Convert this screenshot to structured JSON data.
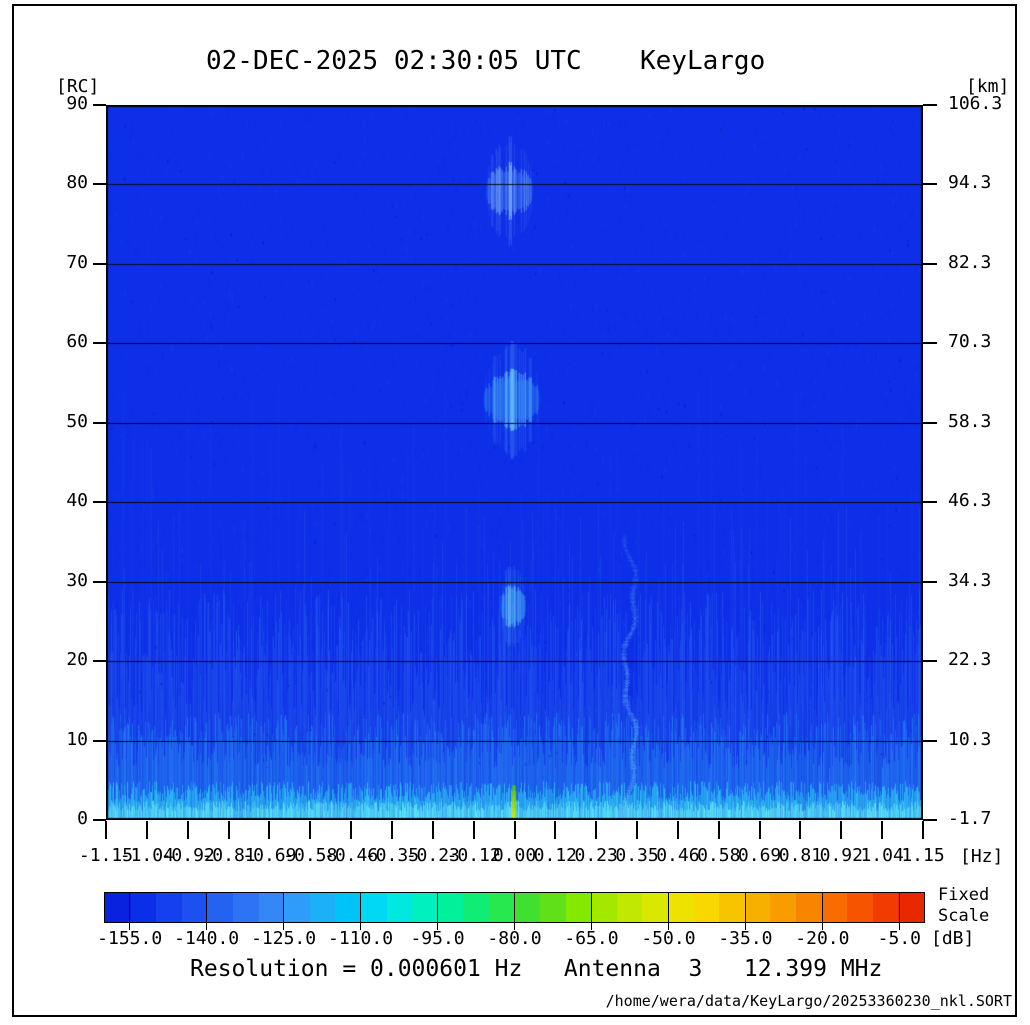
{
  "header": {
    "datetime": "02-DEC-2025 02:30:05 UTC",
    "station": "KeyLargo"
  },
  "axes": {
    "left": {
      "unit": "[RC]",
      "labels": [
        "90",
        "80",
        "70",
        "60",
        "50",
        "40",
        "30",
        "20",
        "10",
        "0"
      ]
    },
    "right": {
      "unit": "[km]",
      "labels": [
        "106.3",
        "94.3",
        "82.3",
        "70.3",
        "58.3",
        "46.3",
        "34.3",
        "22.3",
        "10.3",
        "-1.7"
      ]
    },
    "bottom": {
      "unit": "[Hz]",
      "labels": [
        "-1.15",
        "-1.04",
        "-0.92",
        "-0.81",
        "-0.69",
        "-0.58",
        "-0.46",
        "-0.35",
        "-0.23",
        "-0.12",
        "0.00",
        "0.12",
        "0.23",
        "0.35",
        "0.46",
        "0.58",
        "0.69",
        "0.81",
        "0.92",
        "1.04",
        "1.15"
      ]
    }
  },
  "colorbar": {
    "unit": "[dB]",
    "labels": [
      "-155.0",
      "-140.0",
      "-125.0",
      "-110.0",
      "-95.0",
      "-80.0",
      "-65.0",
      "-50.0",
      "-35.0",
      "-20.0",
      "-5.0"
    ],
    "tick_values": [
      -155,
      -140,
      -125,
      -110,
      -95,
      -80,
      -65,
      -50,
      -35,
      -20,
      -5
    ],
    "range": [
      -160,
      0
    ],
    "note_line1": "Fixed",
    "note_line2": "Scale",
    "segment_colors": [
      "#0822e0",
      "#0b2ee8",
      "#1440ee",
      "#1c50f0",
      "#2462f2",
      "#2c74f4",
      "#3488f6",
      "#2e9cf8",
      "#1cb0f8",
      "#00c4f8",
      "#00d8f4",
      "#00e8e0",
      "#00f0c0",
      "#00f09c",
      "#10ec74",
      "#28e850",
      "#40e030",
      "#60e018",
      "#84e800",
      "#a4e800",
      "#c0e800",
      "#d8e800",
      "#ece400",
      "#f8d800",
      "#f8c400",
      "#f8b000",
      "#f89c00",
      "#f88400",
      "#f86c00",
      "#f85400",
      "#f03c00",
      "#e82800"
    ]
  },
  "footer": {
    "resolution_line": "Resolution = 0.000601 Hz   Antenna  3   12.399 MHz",
    "file_path": "/home/wera/data/KeyLargo/20253360230_nkl.SORT"
  },
  "colors": {
    "plot_background": "#0d2fe8",
    "grid_line": "#000000",
    "frame": "#000000"
  },
  "chart_data": {
    "type": "heatmap",
    "title": "02-DEC-2025 02:30:05 UTC KeyLargo",
    "xlabel": "[Hz]",
    "xlim": [
      -1.15,
      1.15
    ],
    "x_ticks": [
      -1.15,
      -1.04,
      -0.92,
      -0.81,
      -0.69,
      -0.58,
      -0.46,
      -0.35,
      -0.23,
      -0.12,
      0,
      0.12,
      0.23,
      0.35,
      0.46,
      0.58,
      0.69,
      0.81,
      0.92,
      1.04,
      1.15
    ],
    "ylabel_left": "[RC]",
    "ylim": [
      0,
      90
    ],
    "y_ticks": [
      0,
      10,
      20,
      30,
      40,
      50,
      60,
      70,
      80,
      90
    ],
    "ylabel_right": "[km]",
    "ylim_right": [
      -1.7,
      106.3
    ],
    "value_unit": "[dB]",
    "grid": "horizontal black lines every 10 RC",
    "background_level_db": -155,
    "features": [
      {
        "kind": "echo-blob",
        "x_hz": -0.016,
        "rc": 79.2,
        "width_hz": 0.134,
        "height_rc": 5.9,
        "approx_db": -120,
        "base_color": "#4f92f6",
        "peak_color": "#a6d2fb"
      },
      {
        "kind": "echo-blob",
        "x_hz": -0.008,
        "rc": 52.9,
        "width_hz": 0.16,
        "height_rc": 6.3,
        "approx_db": -105,
        "base_color": "#2fa8f7",
        "peak_color": "#7fe2fb"
      },
      {
        "kind": "echo-blob",
        "x_hz": -0.005,
        "rc": 26.9,
        "width_hz": 0.071,
        "height_rc": 4.7,
        "approx_db": -108,
        "base_color": "#38c2f8",
        "peak_color": "#8fecfc"
      },
      {
        "kind": "interference-streak",
        "x_hz": 0.325,
        "rc_top": 36,
        "rc_bottom": 0,
        "width_hz": 0.022,
        "wave_amp_hz": 0.015,
        "color": "#55a6f2",
        "core_color": "#7ed2f6"
      },
      {
        "kind": "dc-spike",
        "x_hz": -0.002,
        "rc_top": 4.4,
        "rc_bottom": 0,
        "width_hz": 0.009,
        "top_color": "#38c80c",
        "bottom_color": "#e8e800"
      },
      {
        "kind": "noise-floor",
        "description": "vertical striation noise rising below ~RC 22, bright cyan band at RC 0-2.5",
        "layers": [
          {
            "rc_top_base": 13.0,
            "rc_top_jitter": 16.0,
            "color": "#2e6cf2",
            "alpha_base": 0.16,
            "alpha_jitter": 0.3
          },
          {
            "rc_top_base": 6.5,
            "rc_top_jitter": 7.0,
            "color": "#2796f5",
            "alpha_base": 0.25,
            "alpha_jitter": 0.35
          },
          {
            "rc_top_base": 2.3,
            "rc_top_jitter": 2.6,
            "color": "#2fd0f4",
            "alpha_base": 0.45,
            "alpha_jitter": 0.4
          },
          {
            "rc_top_base": 1.1,
            "rc_top_jitter": 1.3,
            "color": "#66ecf6",
            "alpha_base": 0.4,
            "alpha_jitter": 0.5
          }
        ]
      }
    ]
  }
}
